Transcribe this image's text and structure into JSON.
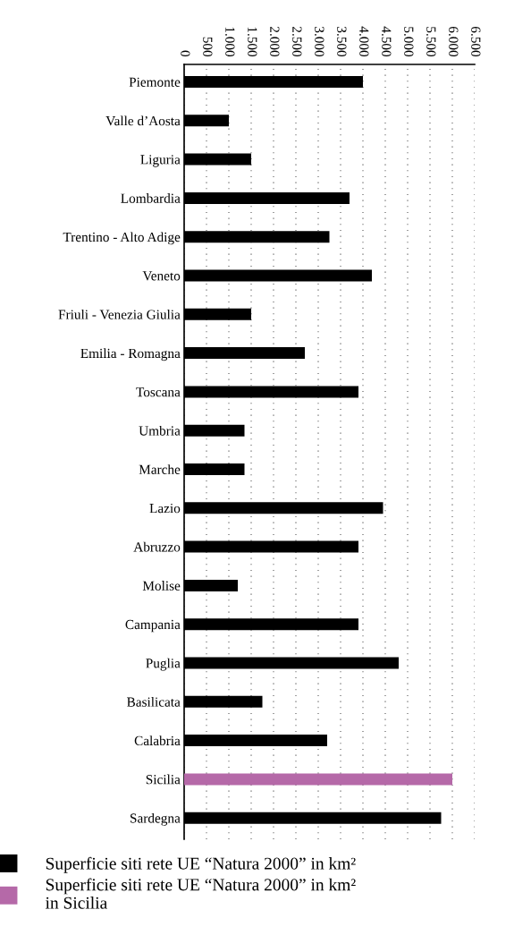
{
  "chart_data": {
    "type": "bar",
    "orientation": "horizontal",
    "categories": [
      "Piemonte",
      "Valle d’Aosta",
      "Liguria",
      "Lombardia",
      "Trentino - Alto Adige",
      "Veneto",
      "Friuli - Venezia Giulia",
      "Emilia - Romagna",
      "Toscana",
      "Umbria",
      "Marche",
      "Lazio",
      "Abruzzo",
      "Molise",
      "Campania",
      "Puglia",
      "Basilicata",
      "Calabria",
      "Sicilia",
      "Sardegna"
    ],
    "series": [
      {
        "name": "Superficie siti rete UE “Natura 2000” in km²",
        "color": "#000000",
        "values": [
          4000,
          1000,
          1500,
          3700,
          3250,
          4200,
          1500,
          2700,
          3900,
          1350,
          1350,
          4450,
          3900,
          1200,
          3900,
          4800,
          1750,
          3200,
          null,
          5750
        ]
      },
      {
        "name": "Superficie siti rete UE “Natura 2000” in km²\nin Sicilia",
        "color": "#b569a8",
        "values": [
          null,
          null,
          null,
          null,
          null,
          null,
          null,
          null,
          null,
          null,
          null,
          null,
          null,
          null,
          null,
          null,
          null,
          null,
          6000,
          null
        ]
      }
    ],
    "xlim": [
      0,
      6500
    ],
    "xticks": [
      0,
      500,
      {
        "value": 1000,
        "label": "1.000"
      },
      {
        "value": 1500,
        "label": "1.500"
      },
      {
        "value": 2000,
        "label": "2.000"
      },
      {
        "value": 2500,
        "label": "2.500"
      },
      {
        "value": 3000,
        "label": "3.000"
      },
      {
        "value": 3500,
        "label": "3.500"
      },
      {
        "value": 4000,
        "label": "4.000"
      },
      {
        "value": 4500,
        "label": "4.500"
      },
      {
        "value": 5000,
        "label": "5.000"
      },
      {
        "value": 5500,
        "label": "5.500"
      },
      {
        "value": 6000,
        "label": "6.000"
      },
      {
        "value": 6500,
        "label": "6.500"
      }
    ],
    "grid": "x",
    "legend": "bottom"
  }
}
